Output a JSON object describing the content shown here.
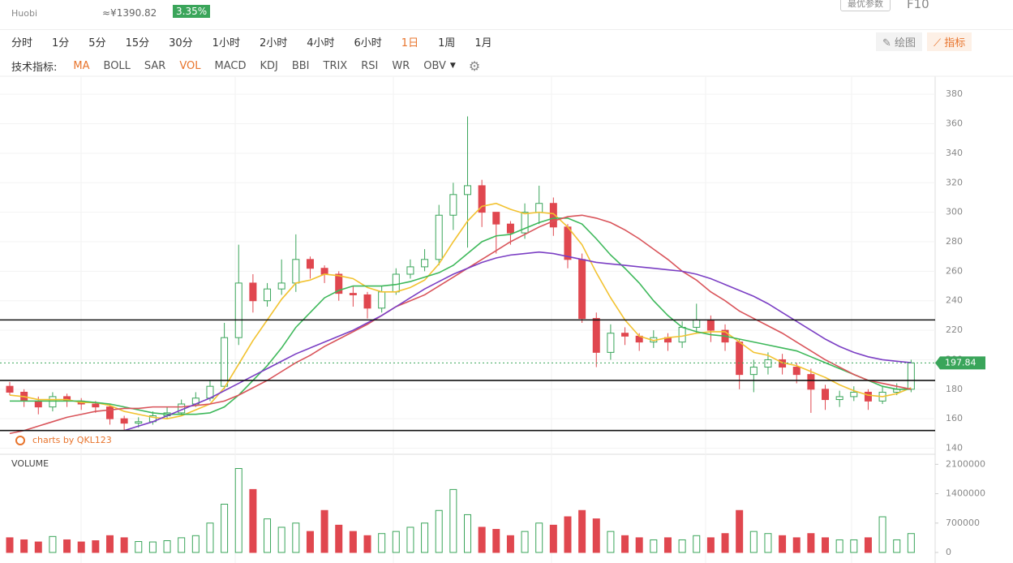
{
  "header": {
    "exchange": "Huobi",
    "price_cny": "≈¥1390.82",
    "change": "3.35%",
    "buttons": [
      "最优参数",
      "F10"
    ]
  },
  "toolbar": {
    "periods": [
      "分时",
      "1分",
      "5分",
      "15分",
      "30分",
      "1小时",
      "2小时",
      "4小时",
      "6小时",
      "1日",
      "1周",
      "1月"
    ],
    "active_period": "1日",
    "tools": [
      "绘图",
      "指标"
    ]
  },
  "indicators": {
    "label": "技术指标:",
    "items": [
      "MA",
      "BOLL",
      "SAR",
      "VOL",
      "MACD",
      "KDJ",
      "BBI",
      "TRIX",
      "RSI",
      "WR",
      "OBV"
    ],
    "active": [
      "MA",
      "VOL"
    ]
  },
  "watermark": "charts by QKL123",
  "chart_data": {
    "type": "candlestick",
    "volume_title": "VOLUME",
    "up_color": "#3aa55a",
    "down_color": "#e0474f",
    "open": [
      182,
      178,
      172,
      168,
      175,
      172,
      170,
      168,
      160,
      157,
      158,
      162,
      164,
      170,
      174,
      182,
      215,
      252,
      240,
      248,
      252,
      268,
      262,
      258,
      245,
      244,
      235,
      246,
      258,
      263,
      268,
      298,
      312,
      318,
      300,
      292,
      286,
      300,
      306,
      290,
      268,
      228,
      205,
      218,
      216,
      212,
      215,
      212,
      222,
      227,
      220,
      212,
      190,
      195,
      200,
      195,
      190,
      180,
      173,
      175,
      178,
      172,
      178,
      180
    ],
    "high": [
      185,
      180,
      175,
      178,
      177,
      174,
      172,
      170,
      162,
      161,
      165,
      168,
      173,
      178,
      186,
      225,
      278,
      258,
      252,
      268,
      285,
      270,
      264,
      260,
      250,
      246,
      250,
      262,
      268,
      275,
      305,
      320,
      365,
      322,
      300,
      294,
      306,
      318,
      310,
      292,
      272,
      232,
      224,
      222,
      218,
      220,
      218,
      226,
      238,
      230,
      224,
      214,
      200,
      205,
      204,
      198,
      194,
      183,
      179,
      182,
      180,
      182,
      184,
      200
    ],
    "low": [
      176,
      168,
      163,
      165,
      168,
      166,
      164,
      156,
      152,
      154,
      156,
      160,
      162,
      168,
      172,
      180,
      210,
      232,
      236,
      244,
      246,
      255,
      252,
      240,
      236,
      228,
      232,
      244,
      255,
      260,
      264,
      288,
      276,
      290,
      272,
      278,
      282,
      292,
      284,
      262,
      225,
      195,
      200,
      210,
      206,
      208,
      206,
      208,
      218,
      212,
      206,
      180,
      178,
      190,
      190,
      184,
      164,
      166,
      168,
      172,
      166,
      170,
      176,
      178
    ],
    "close": [
      178,
      172,
      168,
      175,
      172,
      170,
      168,
      160,
      157,
      158,
      162,
      164,
      170,
      174,
      182,
      215,
      252,
      240,
      248,
      252,
      268,
      262,
      258,
      245,
      244,
      235,
      246,
      258,
      263,
      268,
      298,
      312,
      318,
      300,
      292,
      286,
      300,
      306,
      290,
      268,
      228,
      205,
      218,
      216,
      212,
      215,
      212,
      222,
      227,
      220,
      212,
      190,
      195,
      200,
      195,
      190,
      180,
      173,
      175,
      178,
      172,
      178,
      180,
      197.84
    ],
    "volume": [
      350000,
      300000,
      250000,
      380000,
      300000,
      250000,
      280000,
      400000,
      350000,
      260000,
      250000,
      280000,
      350000,
      400000,
      700000,
      1150000,
      2000000,
      1500000,
      800000,
      600000,
      700000,
      500000,
      1000000,
      650000,
      500000,
      400000,
      450000,
      500000,
      600000,
      700000,
      1000000,
      1500000,
      900000,
      600000,
      550000,
      400000,
      500000,
      700000,
      650000,
      850000,
      1000000,
      800000,
      500000,
      400000,
      350000,
      300000,
      350000,
      300000,
      400000,
      350000,
      450000,
      1000000,
      500000,
      450000,
      400000,
      350000,
      450000,
      350000,
      300000,
      300000,
      350000,
      850000,
      300000,
      450000
    ],
    "ma_lines": [
      {
        "color": "#f2c230",
        "values": [
          176,
          175,
          173,
          173,
          173,
          171,
          171,
          169,
          165,
          163,
          161,
          160,
          162,
          166,
          170,
          181,
          197,
          213,
          227,
          241,
          252,
          254,
          258,
          257,
          255,
          249,
          246,
          246,
          249,
          254,
          265,
          280,
          294,
          304,
          306,
          302,
          299,
          300,
          299,
          290,
          278,
          259,
          242,
          227,
          216,
          213,
          215,
          216,
          218,
          219,
          219,
          212,
          205,
          203,
          198,
          196,
          192,
          188,
          183,
          179,
          176,
          175,
          177,
          181
        ]
      },
      {
        "color": "#3db85a",
        "values": [
          172,
          172,
          172,
          172,
          172,
          172,
          171,
          170,
          168,
          166,
          164,
          163,
          163,
          163,
          164,
          168,
          176,
          186,
          196,
          208,
          222,
          232,
          242,
          247,
          250,
          250,
          250,
          251,
          253,
          256,
          259,
          264,
          272,
          280,
          284,
          285,
          289,
          293,
          296,
          296,
          292,
          282,
          271,
          262,
          252,
          240,
          230,
          222,
          219,
          217,
          216,
          214,
          212,
          210,
          208,
          206,
          202,
          198,
          194,
          190,
          186,
          182,
          180,
          180
        ]
      },
      {
        "color": "#d9545a",
        "values": [
          150,
          152,
          155,
          158,
          161,
          163,
          165,
          166,
          167,
          167,
          168,
          168,
          168,
          169,
          170,
          172,
          176,
          181,
          186,
          192,
          198,
          203,
          209,
          214,
          219,
          224,
          230,
          236,
          240,
          244,
          250,
          256,
          262,
          268,
          274,
          280,
          285,
          290,
          294,
          297,
          298,
          296,
          293,
          288,
          282,
          275,
          268,
          260,
          254,
          246,
          240,
          233,
          228,
          223,
          218,
          212,
          206,
          200,
          195,
          190,
          186,
          184,
          182,
          180
        ]
      },
      {
        "color": "#7b3fc4",
        "values": [
          null,
          null,
          null,
          null,
          null,
          null,
          null,
          null,
          152,
          155,
          158,
          162,
          166,
          170,
          174,
          179,
          184,
          189,
          194,
          199,
          204,
          208,
          212,
          216,
          220,
          225,
          230,
          236,
          242,
          248,
          253,
          258,
          262,
          266,
          269,
          271,
          272,
          273,
          272,
          270,
          268,
          266,
          265,
          264,
          263,
          262,
          261,
          260,
          258,
          255,
          251,
          247,
          243,
          238,
          232,
          226,
          220,
          214,
          209,
          205,
          202,
          200,
          199,
          198
        ]
      }
    ],
    "horizontal_lines": [
      227,
      186,
      152
    ],
    "ylim": [
      137,
      390
    ],
    "yticks": [
      140,
      160,
      180,
      200,
      220,
      240,
      260,
      280,
      300,
      320,
      340,
      360,
      380
    ],
    "vol_ylim": [
      0,
      2300000
    ],
    "vol_yticks": [
      0,
      700000,
      1400000,
      2100000
    ],
    "grid": true
  }
}
